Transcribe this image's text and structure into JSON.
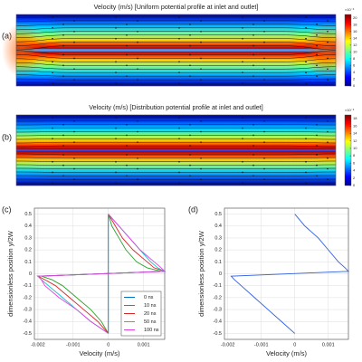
{
  "chart_data": [
    {
      "type": "heatmap",
      "panel_label": "(a)",
      "title": "Velocity (m/s) [Uniform potential profile at inlet and outlet]",
      "colorbar_label": "×10⁻³",
      "clim": [
        0,
        21
      ],
      "colorbar_ticks": [
        0,
        2,
        4,
        6,
        8,
        10,
        12,
        14,
        16,
        18,
        20
      ]
    },
    {
      "type": "heatmap",
      "panel_label": "(b)",
      "title": "Velocity (m/s) [Distribution potential profile at inlet and outlet]",
      "colorbar_label": "×10⁻³",
      "clim": [
        0,
        19
      ],
      "colorbar_ticks": [
        0,
        2,
        4,
        6,
        8,
        10,
        12,
        14,
        16,
        18
      ]
    },
    {
      "type": "line",
      "panel_label": "(c)",
      "x_label": "Velocity (m/s)",
      "y_label": "dimensionless position y/2W",
      "xlim": [
        -0.0021,
        0.0016
      ],
      "ylim": [
        -0.55,
        0.55
      ],
      "xticks": [
        -0.002,
        -0.001,
        0,
        0.001
      ],
      "yticks": [
        -0.5,
        -0.4,
        -0.3,
        -0.2,
        -0.1,
        0,
        0.1,
        0.2,
        0.3,
        0.4,
        0.5
      ],
      "grid": true,
      "legend": "lower right",
      "series": [
        {
          "name": "0 ns",
          "color": "#0072bd",
          "x": [
            0,
            0,
            0,
            0,
            0,
            0,
            0,
            0,
            0,
            0,
            0,
            0,
            0,
            0
          ],
          "values": [
            0.5,
            0.4,
            0.3,
            0.2,
            0.1,
            0.05,
            0.02,
            -0.02,
            -0.05,
            -0.1,
            -0.2,
            -0.3,
            -0.4,
            -0.5
          ]
        },
        {
          "name": "10 ns",
          "color": "#2ca02c",
          "x": [
            0,
            0.0001,
            0.0003,
            0.0005,
            0.0008,
            0.0011,
            0.0015,
            -0.0019,
            -0.0016,
            -0.0013,
            -0.0009,
            -0.0005,
            -0.0002,
            0
          ],
          "values": [
            0.5,
            0.4,
            0.3,
            0.2,
            0.1,
            0.05,
            0.02,
            -0.02,
            -0.05,
            -0.1,
            -0.2,
            -0.3,
            -0.4,
            -0.5
          ]
        },
        {
          "name": "20 ns",
          "color": "#d62728",
          "x": [
            0,
            0.0002,
            0.0004,
            0.0007,
            0.0011,
            0.0013,
            0.0016,
            -0.002,
            -0.0018,
            -0.0015,
            -0.0011,
            -0.0007,
            -0.0003,
            0
          ],
          "values": [
            0.5,
            0.4,
            0.3,
            0.2,
            0.1,
            0.05,
            0.02,
            -0.02,
            -0.05,
            -0.1,
            -0.2,
            -0.3,
            -0.4,
            -0.5
          ]
        },
        {
          "name": "50 ns",
          "color": "#17becf",
          "x": [
            0,
            0.0003,
            0.0006,
            0.0009,
            0.0012,
            0.0014,
            0.0016,
            -0.002,
            -0.0019,
            -0.0017,
            -0.0013,
            -0.0009,
            -0.0005,
            0
          ],
          "values": [
            0.5,
            0.4,
            0.3,
            0.2,
            0.1,
            0.05,
            0.02,
            -0.02,
            -0.05,
            -0.1,
            -0.2,
            -0.3,
            -0.4,
            -0.5
          ]
        },
        {
          "name": "100 ns",
          "color": "#e040e0",
          "x": [
            0,
            0.0003,
            0.0006,
            0.0009,
            0.0013,
            0.0015,
            0.0016,
            -0.002,
            -0.0019,
            -0.0018,
            -0.0014,
            -0.0009,
            -0.0005,
            0
          ],
          "values": [
            0.5,
            0.4,
            0.3,
            0.2,
            0.1,
            0.05,
            0.02,
            -0.02,
            -0.05,
            -0.1,
            -0.2,
            -0.3,
            -0.4,
            -0.5
          ]
        }
      ]
    },
    {
      "type": "line",
      "panel_label": "(d)",
      "x_label": "Velocity (m/s)",
      "y_label": "dimensionless position y/2W",
      "xlim": [
        -0.0021,
        0.0016
      ],
      "ylim": [
        -0.55,
        0.55
      ],
      "xticks": [
        -0.002,
        -0.001,
        0,
        0.001
      ],
      "yticks": [
        -0.5,
        -0.4,
        -0.3,
        -0.2,
        -0.1,
        0,
        0.1,
        0.2,
        0.3,
        0.4,
        0.5
      ],
      "grid": true,
      "series": [
        {
          "color": "#3060e0",
          "x": [
            0,
            0.0003,
            0.0007,
            0.001,
            0.0013,
            0.0015,
            0.0016,
            -0.0019,
            -0.0018,
            -0.0016,
            -0.0012,
            -0.0008,
            -0.0004,
            0
          ],
          "values": [
            0.5,
            0.4,
            0.3,
            0.2,
            0.1,
            0.05,
            0.02,
            -0.02,
            -0.05,
            -0.1,
            -0.2,
            -0.3,
            -0.4,
            -0.5
          ]
        }
      ]
    }
  ]
}
